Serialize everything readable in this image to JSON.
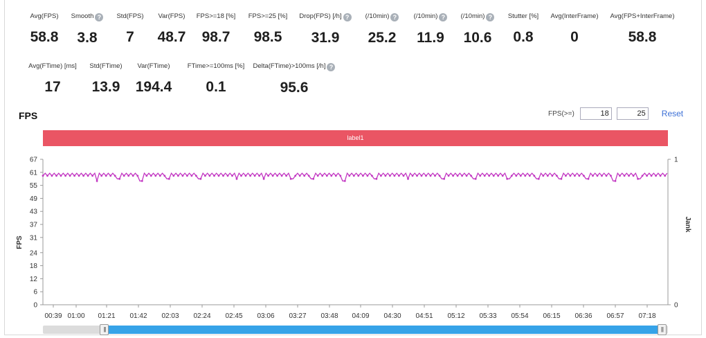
{
  "metrics_row1": [
    {
      "label": "Avg(FPS)",
      "value": "58.8",
      "help": false
    },
    {
      "label": "Smooth",
      "value": "3.8",
      "help": true
    },
    {
      "label": "Std(FPS)",
      "value": "7",
      "help": false
    },
    {
      "label": "Var(FPS)",
      "value": "48.7",
      "help": false
    },
    {
      "label": "FPS>=18 [%]",
      "value": "98.7",
      "help": false
    },
    {
      "label": "FPS>=25 [%]",
      "value": "98.5",
      "help": false
    },
    {
      "label": "Drop(FPS) [/h]",
      "value": "31.9",
      "help": true
    },
    {
      "label": "(/10min)",
      "value": "25.2",
      "help": true
    },
    {
      "label": "(/10min)",
      "value": "11.9",
      "help": true
    },
    {
      "label": "(/10min)",
      "value": "10.6",
      "help": true
    },
    {
      "label": "Stutter [%]",
      "value": "0.8",
      "help": false
    },
    {
      "label": "Avg(InterFrame)",
      "value": "0",
      "help": false
    },
    {
      "label": "Avg(FPS+InterFrame)",
      "value": "58.8",
      "help": false
    }
  ],
  "metrics_row2": [
    {
      "label": "Avg(FTime) [ms]",
      "value": "17",
      "help": false
    },
    {
      "label": "Std(FTime)",
      "value": "13.9",
      "help": false
    },
    {
      "label": "Var(FTime)",
      "value": "194.4",
      "help": false
    },
    {
      "label": "FTime>=100ms [%]",
      "value": "0.1",
      "help": false
    },
    {
      "label": "Delta(FTime)>100ms [/h]",
      "value": "95.6",
      "help": true
    }
  ],
  "help_glyph": "?",
  "fps_section": {
    "title": "FPS",
    "filter_label": "FPS(>=)",
    "threshold_1": "18",
    "threshold_2": "25",
    "reset_label": "Reset",
    "label_bar": "label1",
    "label_bar_color": "#ea5564"
  },
  "slider": {
    "handle_glyph": "|||",
    "range_start_fraction": 0.098,
    "range_end_fraction": 0.99
  },
  "chart_data": {
    "type": "line",
    "ylabel": "FPS",
    "y2label": "Jank",
    "ylim": [
      0,
      67
    ],
    "yticks": [
      0,
      6,
      12,
      18,
      24,
      31,
      37,
      43,
      49,
      55,
      61,
      67
    ],
    "y2lim": [
      0,
      1
    ],
    "y2ticks": [
      0,
      1
    ],
    "xticks": [
      "00:39",
      "01:00",
      "01:21",
      "01:42",
      "02:03",
      "02:24",
      "02:45",
      "03:06",
      "03:27",
      "03:48",
      "04:09",
      "04:30",
      "04:51",
      "05:12",
      "05:33",
      "05:54",
      "06:15",
      "06:36",
      "06:57",
      "07:18"
    ],
    "x_start_seconds": 39,
    "x_end_seconds": 455,
    "baseline_fps": 60,
    "dips": [
      {
        "t": 75,
        "fps": 57
      },
      {
        "t": 89,
        "fps": 58
      },
      {
        "t": 104,
        "fps": 57
      },
      {
        "t": 122,
        "fps": 58
      },
      {
        "t": 143,
        "fps": 58
      },
      {
        "t": 168,
        "fps": 58
      },
      {
        "t": 186,
        "fps": 58
      },
      {
        "t": 205,
        "fps": 58
      },
      {
        "t": 218,
        "fps": 58
      },
      {
        "t": 239,
        "fps": 57
      },
      {
        "t": 260,
        "fps": 58
      },
      {
        "t": 282,
        "fps": 58
      },
      {
        "t": 305,
        "fps": 58
      },
      {
        "t": 326,
        "fps": 58
      },
      {
        "t": 349,
        "fps": 58
      },
      {
        "t": 368,
        "fps": 58
      },
      {
        "t": 383,
        "fps": 58
      },
      {
        "t": 401,
        "fps": 58
      },
      {
        "t": 419,
        "fps": 57
      },
      {
        "t": 436,
        "fps": 58
      }
    ],
    "series": [
      {
        "color": "#c236c2"
      }
    ],
    "grid": false
  }
}
